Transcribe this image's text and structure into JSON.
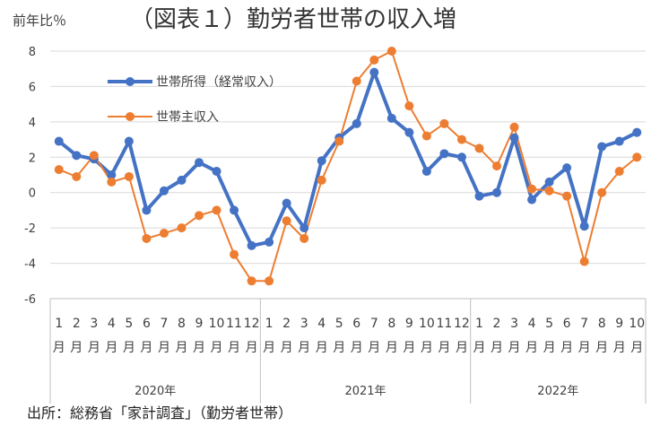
{
  "chart_data": {
    "type": "line",
    "title": "（図表１）勤労者世帯の収入増",
    "ylabel": "前年比％",
    "source": "出所：総務省「家計調査」（勤労者世帯）",
    "ylim": [
      -6,
      8
    ],
    "yticks": [
      8,
      6,
      4,
      2,
      0,
      -2,
      -4,
      -6
    ],
    "grid": true,
    "legend_position": "inside-top-left",
    "month_suffix": "月",
    "x": [
      {
        "year": "2020年",
        "month": "1"
      },
      {
        "year": "2020年",
        "month": "2"
      },
      {
        "year": "2020年",
        "month": "3"
      },
      {
        "year": "2020年",
        "month": "4"
      },
      {
        "year": "2020年",
        "month": "5"
      },
      {
        "year": "2020年",
        "month": "6"
      },
      {
        "year": "2020年",
        "month": "7"
      },
      {
        "year": "2020年",
        "month": "8"
      },
      {
        "year": "2020年",
        "month": "9"
      },
      {
        "year": "2020年",
        "month": "10"
      },
      {
        "year": "2020年",
        "month": "11"
      },
      {
        "year": "2020年",
        "month": "12"
      },
      {
        "year": "2021年",
        "month": "1"
      },
      {
        "year": "2021年",
        "month": "2"
      },
      {
        "year": "2021年",
        "month": "3"
      },
      {
        "year": "2021年",
        "month": "4"
      },
      {
        "year": "2021年",
        "month": "5"
      },
      {
        "year": "2021年",
        "month": "6"
      },
      {
        "year": "2021年",
        "month": "7"
      },
      {
        "year": "2021年",
        "month": "8"
      },
      {
        "year": "2021年",
        "month": "9"
      },
      {
        "year": "2021年",
        "month": "10"
      },
      {
        "year": "2021年",
        "month": "11"
      },
      {
        "year": "2021年",
        "month": "12"
      },
      {
        "year": "2022年",
        "month": "1"
      },
      {
        "year": "2022年",
        "month": "2"
      },
      {
        "year": "2022年",
        "month": "3"
      },
      {
        "year": "2022年",
        "month": "4"
      },
      {
        "year": "2022年",
        "month": "5"
      },
      {
        "year": "2022年",
        "month": "6"
      },
      {
        "year": "2022年",
        "month": "7"
      },
      {
        "year": "2022年",
        "month": "8"
      },
      {
        "year": "2022年",
        "month": "9"
      },
      {
        "year": "2022年",
        "month": "10"
      }
    ],
    "series": [
      {
        "name": "世帯所得（経常収入）",
        "color": "#4472C4",
        "values": [
          2.9,
          2.1,
          1.9,
          1.0,
          2.9,
          -1.0,
          0.1,
          0.7,
          1.7,
          1.2,
          -1.0,
          -3.0,
          -2.8,
          -0.6,
          -2.0,
          1.8,
          3.1,
          3.9,
          6.8,
          4.2,
          3.4,
          1.2,
          2.2,
          2.0,
          -0.2,
          0.0,
          3.1,
          -0.4,
          0.6,
          1.4,
          -1.9,
          2.6,
          2.9,
          3.4
        ]
      },
      {
        "name": "世帯主収入",
        "color": "#ED7D31",
        "values": [
          1.3,
          0.9,
          2.1,
          0.6,
          0.9,
          -2.6,
          -2.3,
          -2.0,
          -1.3,
          -1.0,
          -3.5,
          -5.0,
          -5.0,
          -1.6,
          -2.6,
          0.7,
          2.9,
          6.3,
          7.5,
          8.0,
          4.9,
          3.2,
          3.9,
          3.0,
          2.5,
          1.5,
          3.7,
          0.2,
          0.1,
          -0.2,
          -3.9,
          0.0,
          1.2,
          2.0
        ]
      }
    ]
  }
}
